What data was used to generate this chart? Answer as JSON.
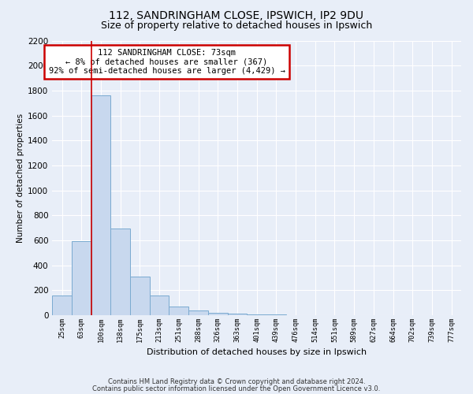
{
  "title1": "112, SANDRINGHAM CLOSE, IPSWICH, IP2 9DU",
  "title2": "Size of property relative to detached houses in Ipswich",
  "xlabel": "Distribution of detached houses by size in Ipswich",
  "ylabel": "Number of detached properties",
  "footer1": "Contains HM Land Registry data © Crown copyright and database right 2024.",
  "footer2": "Contains public sector information licensed under the Open Government Licence v3.0.",
  "categories": [
    "25sqm",
    "63sqm",
    "100sqm",
    "138sqm",
    "175sqm",
    "213sqm",
    "251sqm",
    "288sqm",
    "326sqm",
    "363sqm",
    "401sqm",
    "439sqm",
    "476sqm",
    "514sqm",
    "551sqm",
    "589sqm",
    "627sqm",
    "664sqm",
    "702sqm",
    "739sqm",
    "777sqm"
  ],
  "values": [
    155,
    590,
    1760,
    695,
    310,
    155,
    70,
    40,
    20,
    10,
    5,
    3,
    1,
    0,
    0,
    0,
    0,
    0,
    0,
    0,
    0
  ],
  "bar_color": "#c8d8ee",
  "bar_edge_color": "#7aaad0",
  "ylim": [
    0,
    2200
  ],
  "yticks": [
    0,
    200,
    400,
    600,
    800,
    1000,
    1200,
    1400,
    1600,
    1800,
    2000,
    2200
  ],
  "red_line_x": 1.5,
  "annotation_text": "112 SANDRINGHAM CLOSE: 73sqm\n← 8% of detached houses are smaller (367)\n92% of semi-detached houses are larger (4,429) →",
  "annotation_box_facecolor": "#ffffff",
  "annotation_border_color": "#cc0000",
  "background_color": "#e8eef8",
  "plot_bg_color": "#e8eef8",
  "grid_color": "#ffffff",
  "title1_fontsize": 10,
  "title2_fontsize": 9
}
